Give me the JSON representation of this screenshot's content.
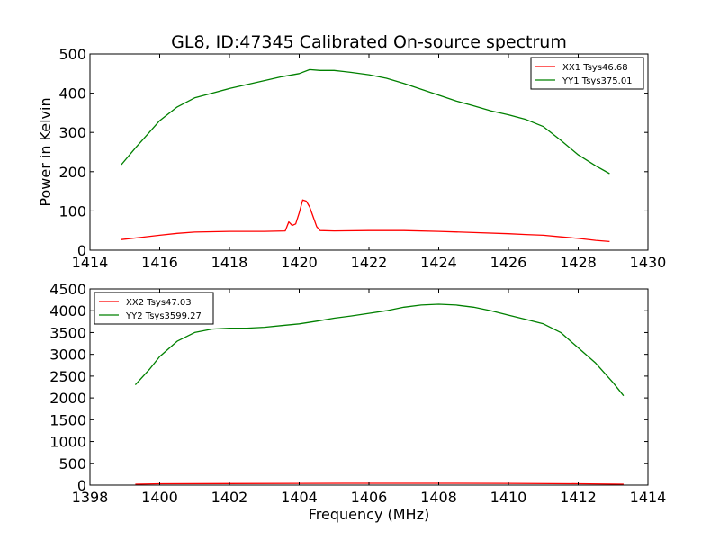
{
  "chart_data": [
    {
      "type": "line",
      "title": "GL8, ID:47345 Calibrated On-source spectrum",
      "xlabel": "",
      "ylabel": "Power in Kelvin",
      "xlim": [
        1414,
        1430
      ],
      "ylim": [
        0,
        500
      ],
      "xticks": [
        1414,
        1416,
        1418,
        1420,
        1422,
        1424,
        1426,
        1428,
        1430
      ],
      "yticks": [
        0,
        100,
        200,
        300,
        400,
        500
      ],
      "legend_position": "top-right",
      "grid": false,
      "series": [
        {
          "name": "XX1 Tsys46.68",
          "color": "#ff0000",
          "x": [
            1414.9,
            1415.5,
            1416.0,
            1416.5,
            1417.0,
            1418.0,
            1419.0,
            1419.6,
            1419.7,
            1419.8,
            1419.9,
            1420.0,
            1420.1,
            1420.2,
            1420.3,
            1420.4,
            1420.5,
            1420.6,
            1421.0,
            1422.0,
            1423.0,
            1424.0,
            1425.0,
            1426.0,
            1426.5,
            1427.0,
            1427.5,
            1428.0,
            1428.5,
            1428.9
          ],
          "y": [
            27,
            33,
            38,
            43,
            46,
            48,
            48,
            49,
            72,
            63,
            67,
            95,
            128,
            125,
            110,
            85,
            60,
            50,
            49,
            50,
            50,
            48,
            45,
            42,
            40,
            38,
            34,
            30,
            25,
            22
          ]
        },
        {
          "name": "YY1 Tsys375.01",
          "color": "#008000",
          "x": [
            1414.9,
            1415.3,
            1415.7,
            1416.0,
            1416.5,
            1417.0,
            1417.5,
            1418.0,
            1418.5,
            1419.0,
            1419.5,
            1420.0,
            1420.3,
            1420.6,
            1421.0,
            1421.5,
            1422.0,
            1422.5,
            1423.0,
            1423.5,
            1424.0,
            1424.5,
            1425.0,
            1425.5,
            1426.0,
            1426.5,
            1427.0,
            1427.5,
            1428.0,
            1428.5,
            1428.9
          ],
          "y": [
            218,
            260,
            300,
            330,
            365,
            388,
            400,
            412,
            422,
            432,
            442,
            450,
            460,
            458,
            458,
            453,
            447,
            438,
            425,
            410,
            395,
            380,
            368,
            355,
            345,
            333,
            315,
            280,
            243,
            215,
            195
          ]
        }
      ]
    },
    {
      "type": "line",
      "title": "",
      "xlabel": "Frequency (MHz)",
      "ylabel": "",
      "xlim": [
        1398,
        1414
      ],
      "ylim": [
        0,
        4500
      ],
      "xticks": [
        1398,
        1400,
        1402,
        1404,
        1406,
        1408,
        1410,
        1412,
        1414
      ],
      "yticks": [
        0,
        500,
        1000,
        1500,
        2000,
        2500,
        3000,
        3500,
        4000,
        4500
      ],
      "legend_position": "top-left",
      "grid": false,
      "series": [
        {
          "name": "XX2 Tsys47.03",
          "color": "#ff0000",
          "x": [
            1399.3,
            1400.0,
            1402.0,
            1404.0,
            1406.0,
            1408.0,
            1410.0,
            1412.0,
            1413.3
          ],
          "y": [
            20,
            30,
            35,
            40,
            42,
            42,
            40,
            30,
            20
          ]
        },
        {
          "name": "YY2 Tsys3599.27",
          "color": "#008000",
          "x": [
            1399.3,
            1399.7,
            1400.0,
            1400.5,
            1401.0,
            1401.5,
            1402.0,
            1402.5,
            1403.0,
            1403.5,
            1404.0,
            1404.5,
            1405.0,
            1405.5,
            1406.0,
            1406.5,
            1407.0,
            1407.5,
            1408.0,
            1408.5,
            1409.0,
            1409.5,
            1410.0,
            1410.5,
            1411.0,
            1411.5,
            1412.0,
            1412.5,
            1413.0,
            1413.3
          ],
          "y": [
            2300,
            2650,
            2950,
            3300,
            3500,
            3580,
            3600,
            3600,
            3620,
            3660,
            3700,
            3760,
            3830,
            3880,
            3940,
            4000,
            4080,
            4130,
            4150,
            4130,
            4080,
            4000,
            3900,
            3800,
            3700,
            3500,
            3150,
            2800,
            2350,
            2050
          ]
        }
      ]
    }
  ]
}
